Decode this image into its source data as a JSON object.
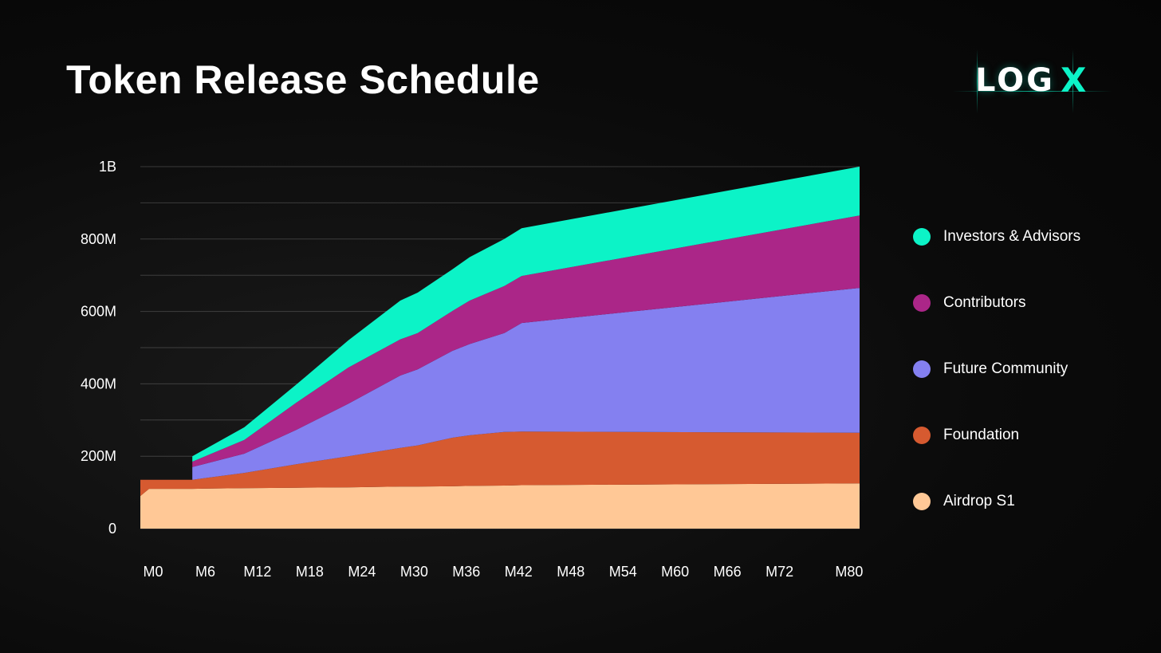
{
  "page": {
    "title": "Token Release Schedule"
  },
  "logo": {
    "text": "LOG",
    "mark": "X"
  },
  "chart_data": {
    "type": "area",
    "stacked": true,
    "title": "Token Release Schedule",
    "xlabel": "",
    "ylabel": "",
    "x": [
      0,
      1,
      6,
      12,
      18,
      24,
      30,
      32,
      36,
      38,
      42,
      44,
      83
    ],
    "x_ticks": [
      0,
      6,
      12,
      18,
      24,
      30,
      36,
      42,
      48,
      54,
      60,
      66,
      72,
      80
    ],
    "x_tick_labels": [
      "M0",
      "M6",
      "M12",
      "M18",
      "M24",
      "M30",
      "M36",
      "M42",
      "M48",
      "M54",
      "M60",
      "M66",
      "M72",
      "M80"
    ],
    "x_range": [
      0,
      79
    ],
    "ylim": [
      0,
      1000000000
    ],
    "y_ticks": [
      0,
      200000000,
      400000000,
      600000000,
      800000000,
      1000000000
    ],
    "y_tick_labels": [
      "0",
      "200M",
      "400M",
      "600M",
      "800M",
      "1B"
    ],
    "grid": "horizontal",
    "legend_position": "right",
    "series": [
      {
        "name": "Airdrop S1",
        "color": "#ffc896",
        "values": [
          90000000,
          110000000,
          110000000,
          112000000,
          113000000,
          114000000,
          116000000,
          116000000,
          117000000,
          118000000,
          119000000,
          120000000,
          125000000
        ]
      },
      {
        "name": "Foundation",
        "color": "#d65a30",
        "values": [
          45000000,
          25000000,
          25000000,
          42000000,
          65000000,
          86000000,
          107000000,
          114000000,
          134000000,
          140000000,
          148000000,
          148000000,
          140000000
        ]
      },
      {
        "name": "Future Community",
        "color": "#8480f0",
        "values": [
          0,
          5000000,
          35000000,
          53000000,
          95000000,
          145000000,
          200000000,
          210000000,
          240000000,
          252000000,
          273000000,
          300000000,
          400000000
        ]
      },
      {
        "name": "Contributors",
        "color": "#ab2688",
        "values": [
          0,
          0,
          15000000,
          38000000,
          75000000,
          100000000,
          100000000,
          100000000,
          110000000,
          120000000,
          130000000,
          130000000,
          200000000
        ]
      },
      {
        "name": "Investors & Advisors",
        "color": "#0cf3c7",
        "values": [
          0,
          0,
          15000000,
          35000000,
          50000000,
          75000000,
          107000000,
          112000000,
          115000000,
          120000000,
          130000000,
          132000000,
          135000000
        ]
      }
    ],
    "series_start": [
      0,
      0,
      5,
      5,
      5
    ],
    "legend_order": [
      "Investors & Advisors",
      "Contributors",
      "Future Community",
      "Foundation",
      "Airdrop S1"
    ]
  }
}
